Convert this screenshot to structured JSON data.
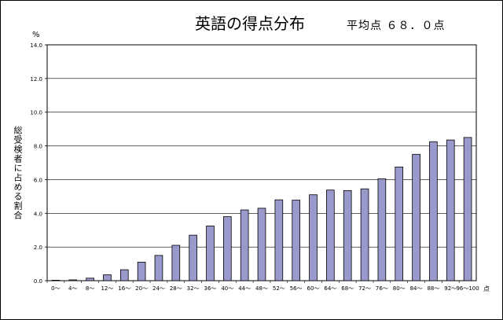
{
  "chart_data": {
    "type": "bar",
    "title": "英語の得点分布",
    "subtitle": "平均点 ６８．０点",
    "ylabel": "総受検者に占める割合",
    "yunit": "%",
    "xunit": "点",
    "ylim": [
      0,
      14
    ],
    "yticks": [
      "0.0",
      "2.0",
      "4.0",
      "6.0",
      "8.0",
      "10.0",
      "12.0",
      "14.0"
    ],
    "grid": true,
    "bar_color": "#9999cc",
    "categories": [
      "0～",
      "4～",
      "8～",
      "12～",
      "16～",
      "20～",
      "24～",
      "28～",
      "32～",
      "36～",
      "40～",
      "44～",
      "48～",
      "52～",
      "56～",
      "60～",
      "64～",
      "68～",
      "72～",
      "76～",
      "80～",
      "84～",
      "88～",
      "92～",
      "96～100"
    ],
    "values": [
      0.0,
      0.05,
      0.15,
      0.35,
      0.65,
      1.1,
      1.5,
      2.1,
      2.7,
      3.25,
      3.8,
      4.2,
      4.3,
      4.8,
      4.78,
      5.1,
      5.38,
      5.35,
      5.45,
      6.05,
      6.75,
      7.5,
      8.25,
      8.35,
      8.5
    ]
  }
}
